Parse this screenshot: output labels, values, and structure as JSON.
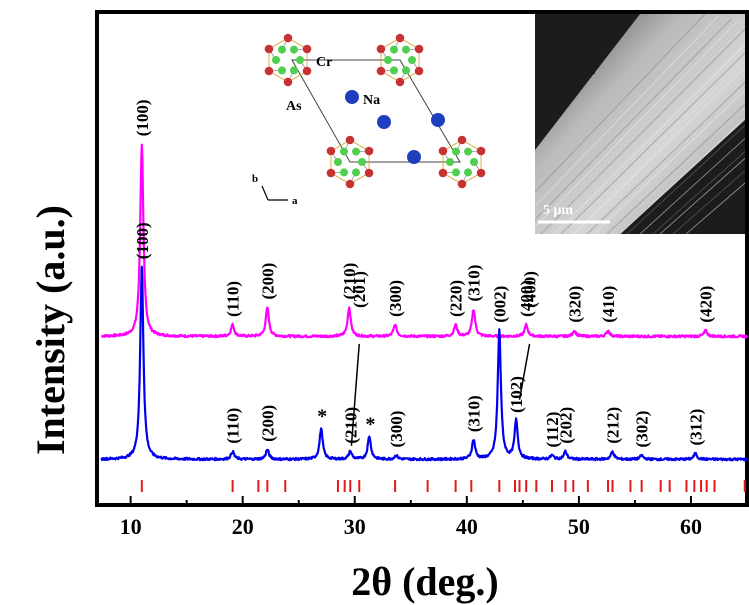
{
  "chart_data": {
    "type": "line",
    "xlabel": "2θ (deg.)",
    "ylabel": "Intensity (a.u.)",
    "xlim": [
      7,
      65
    ],
    "xticks": [
      10,
      20,
      30,
      40,
      50,
      60
    ],
    "y_ticks_shown": false,
    "series": [
      {
        "color": "#ff00ff",
        "offset": 0.62,
        "baseline": 0.06,
        "peaks": [
          {
            "x": 11.0,
            "y": 1.0
          },
          {
            "x": 19.1,
            "y": 0.06
          },
          {
            "x": 22.2,
            "y": 0.15
          },
          {
            "x": 29.5,
            "y": 0.15
          },
          {
            "x": 33.6,
            "y": 0.06
          },
          {
            "x": 39.0,
            "y": 0.06
          },
          {
            "x": 40.6,
            "y": 0.14
          },
          {
            "x": 45.3,
            "y": 0.06
          },
          {
            "x": 49.6,
            "y": 0.03
          },
          {
            "x": 52.6,
            "y": 0.03
          },
          {
            "x": 61.3,
            "y": 0.03
          }
        ],
        "labels": [
          {
            "x": 11.0,
            "text": "(100)"
          },
          {
            "x": 19.1,
            "text": "(110)"
          },
          {
            "x": 22.2,
            "text": "(200)"
          },
          {
            "x": 29.5,
            "text": "(210)"
          },
          {
            "x": 33.6,
            "text": "(300)"
          },
          {
            "x": 39.0,
            "text": "(220)"
          },
          {
            "x": 40.6,
            "text": "(310)"
          },
          {
            "x": 45.3,
            "text": "(400)"
          },
          {
            "x": 49.6,
            "text": "(320)"
          },
          {
            "x": 52.6,
            "text": "(410)"
          },
          {
            "x": 61.3,
            "text": "(420)"
          }
        ]
      },
      {
        "color": "#0000ee",
        "offset": 0.0,
        "baseline": 0.04,
        "peaks": [
          {
            "x": 11.0,
            "y": 1.0
          },
          {
            "x": 19.1,
            "y": 0.04
          },
          {
            "x": 22.2,
            "y": 0.05
          },
          {
            "x": 27.0,
            "y": 0.16
          },
          {
            "x": 29.6,
            "y": 0.04
          },
          {
            "x": 31.3,
            "y": 0.12
          },
          {
            "x": 33.7,
            "y": 0.02
          },
          {
            "x": 40.6,
            "y": 0.1
          },
          {
            "x": 42.9,
            "y": 0.67
          },
          {
            "x": 44.4,
            "y": 0.2
          },
          {
            "x": 47.6,
            "y": 0.02
          },
          {
            "x": 48.8,
            "y": 0.04
          },
          {
            "x": 53.0,
            "y": 0.04
          },
          {
            "x": 55.6,
            "y": 0.02
          },
          {
            "x": 60.4,
            "y": 0.03
          }
        ],
        "labels": [
          {
            "x": 11.0,
            "text": "(100)"
          },
          {
            "x": 19.1,
            "text": "(110)"
          },
          {
            "x": 22.2,
            "text": "(200)"
          },
          {
            "x": 29.6,
            "text": "(210)"
          },
          {
            "x": 30.4,
            "text": "(201)"
          },
          {
            "x": 33.7,
            "text": "(300)"
          },
          {
            "x": 40.6,
            "text": "(310)"
          },
          {
            "x": 42.9,
            "text": "(002)"
          },
          {
            "x": 44.4,
            "text": "(102)"
          },
          {
            "x": 45.6,
            "text": "(400)"
          },
          {
            "x": 47.6,
            "text": "(112)"
          },
          {
            "x": 48.8,
            "text": "(202)"
          },
          {
            "x": 53.0,
            "text": "(212)"
          },
          {
            "x": 55.6,
            "text": "(302)"
          },
          {
            "x": 60.4,
            "text": "(312)"
          }
        ],
        "impurity_markers": [
          {
            "x": 27.0,
            "text": "*"
          },
          {
            "x": 31.3,
            "text": "*"
          }
        ]
      }
    ],
    "reference_ticks": {
      "color": "#e31a1c",
      "x": [
        11.0,
        19.1,
        21.4,
        22.2,
        23.8,
        28.5,
        29.1,
        29.6,
        30.4,
        33.6,
        36.5,
        39.0,
        40.4,
        42.9,
        44.3,
        44.7,
        45.3,
        46.2,
        47.6,
        48.8,
        49.5,
        50.8,
        52.6,
        53.0,
        54.6,
        55.6,
        57.3,
        58.1,
        59.6,
        60.3,
        60.9,
        61.4,
        62.1,
        64.8
      ]
    },
    "inset_structure": {
      "labels": {
        "cr": "Cr",
        "na": "Na",
        "as": "As",
        "axis_b": "b",
        "axis_a": "a"
      },
      "colors": {
        "na": "#1f3fbf",
        "cr": "#4fcf4f",
        "as": "#c83232"
      }
    },
    "inset_sem": {
      "scale_label": "5 μm"
    }
  }
}
